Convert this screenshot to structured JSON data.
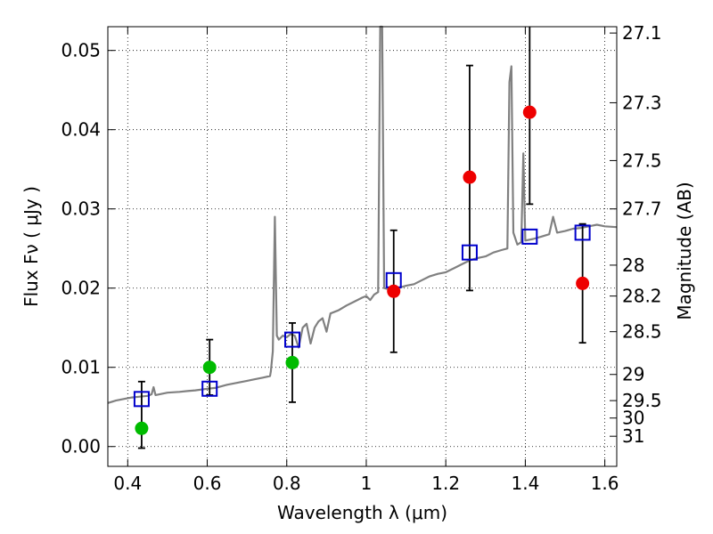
{
  "chart_data": {
    "type": "scatter",
    "xlabel": "Wavelength  λ (μm)",
    "ylabel": "Flux  Fν  ( μJy )",
    "ylabel_right": "Magnitude (AB)",
    "xlim": [
      0.35,
      1.63
    ],
    "ylim": [
      -0.0025,
      0.053
    ],
    "grid": true,
    "colors": {
      "spectrum": "#808080",
      "model_photometry": "#0000cc",
      "detections": "#00bb00",
      "upper_points": "#ee0000",
      "errorbar": "#000000"
    },
    "x_ticks": [
      {
        "value": 0.4,
        "label": "0.4"
      },
      {
        "value": 0.6,
        "label": "0.6"
      },
      {
        "value": 0.8,
        "label": "0.8"
      },
      {
        "value": 1.0,
        "label": "1"
      },
      {
        "value": 1.2,
        "label": "1.2"
      },
      {
        "value": 1.4,
        "label": "1.4"
      },
      {
        "value": 1.6,
        "label": "1.6"
      }
    ],
    "y_ticks": [
      {
        "value": 0.0,
        "label": "0.00"
      },
      {
        "value": 0.01,
        "label": "0.01"
      },
      {
        "value": 0.02,
        "label": "0.02"
      },
      {
        "value": 0.03,
        "label": "0.03"
      },
      {
        "value": 0.04,
        "label": "0.04"
      },
      {
        "value": 0.05,
        "label": "0.05"
      }
    ],
    "right_ticks": [
      {
        "flux": 0.0522,
        "label": "27.1"
      },
      {
        "flux": 0.0434,
        "label": "27.3"
      },
      {
        "flux": 0.0361,
        "label": "27.5"
      },
      {
        "flux": 0.03,
        "label": "27.7"
      },
      {
        "flux": 0.0229,
        "label": "28"
      },
      {
        "flux": 0.019,
        "label": "28.2"
      },
      {
        "flux": 0.0145,
        "label": "28.5"
      },
      {
        "flux": 0.0091,
        "label": "29"
      },
      {
        "flux": 0.0058,
        "label": "29.5"
      },
      {
        "flux": 0.0036,
        "label": "30"
      },
      {
        "flux": 0.0013,
        "label": "31"
      }
    ],
    "spectrum": [
      [
        0.35,
        0.0055
      ],
      [
        0.37,
        0.0058
      ],
      [
        0.39,
        0.006
      ],
      [
        0.41,
        0.0062
      ],
      [
        0.43,
        0.0063
      ],
      [
        0.45,
        0.0064
      ],
      [
        0.46,
        0.0066
      ],
      [
        0.465,
        0.0075
      ],
      [
        0.47,
        0.0065
      ],
      [
        0.5,
        0.0068
      ],
      [
        0.53,
        0.0069
      ],
      [
        0.55,
        0.007
      ],
      [
        0.57,
        0.0071
      ],
      [
        0.6,
        0.0073
      ],
      [
        0.62,
        0.0074
      ],
      [
        0.65,
        0.0078
      ],
      [
        0.68,
        0.0081
      ],
      [
        0.7,
        0.0083
      ],
      [
        0.72,
        0.0085
      ],
      [
        0.74,
        0.0087
      ],
      [
        0.758,
        0.0089
      ],
      [
        0.76,
        0.0095
      ],
      [
        0.765,
        0.012
      ],
      [
        0.77,
        0.029
      ],
      [
        0.775,
        0.014
      ],
      [
        0.78,
        0.0135
      ],
      [
        0.79,
        0.014
      ],
      [
        0.8,
        0.0138
      ],
      [
        0.81,
        0.0142
      ],
      [
        0.82,
        0.014
      ],
      [
        0.83,
        0.0125
      ],
      [
        0.84,
        0.015
      ],
      [
        0.85,
        0.0155
      ],
      [
        0.86,
        0.013
      ],
      [
        0.87,
        0.015
      ],
      [
        0.88,
        0.0158
      ],
      [
        0.89,
        0.0162
      ],
      [
        0.9,
        0.0145
      ],
      [
        0.91,
        0.0168
      ],
      [
        0.93,
        0.0172
      ],
      [
        0.95,
        0.0178
      ],
      [
        0.97,
        0.0183
      ],
      [
        0.99,
        0.0188
      ],
      [
        1.0,
        0.019
      ],
      [
        1.01,
        0.0185
      ],
      [
        1.02,
        0.0192
      ],
      [
        1.03,
        0.0195
      ],
      [
        1.035,
        0.053
      ],
      [
        1.04,
        0.053
      ],
      [
        1.045,
        0.02
      ],
      [
        1.06,
        0.0198
      ],
      [
        1.08,
        0.02
      ],
      [
        1.1,
        0.0203
      ],
      [
        1.12,
        0.0205
      ],
      [
        1.14,
        0.021
      ],
      [
        1.16,
        0.0215
      ],
      [
        1.18,
        0.0218
      ],
      [
        1.2,
        0.022
      ],
      [
        1.22,
        0.0225
      ],
      [
        1.24,
        0.023
      ],
      [
        1.26,
        0.0235
      ],
      [
        1.28,
        0.0238
      ],
      [
        1.3,
        0.024
      ],
      [
        1.32,
        0.0245
      ],
      [
        1.34,
        0.0248
      ],
      [
        1.355,
        0.025
      ],
      [
        1.36,
        0.046
      ],
      [
        1.365,
        0.048
      ],
      [
        1.37,
        0.027
      ],
      [
        1.38,
        0.0255
      ],
      [
        1.39,
        0.0258
      ],
      [
        1.395,
        0.037
      ],
      [
        1.4,
        0.026
      ],
      [
        1.42,
        0.0262
      ],
      [
        1.44,
        0.0265
      ],
      [
        1.46,
        0.0268
      ],
      [
        1.47,
        0.029
      ],
      [
        1.48,
        0.027
      ],
      [
        1.5,
        0.0272
      ],
      [
        1.52,
        0.0275
      ],
      [
        1.54,
        0.0276
      ],
      [
        1.56,
        0.0278
      ],
      [
        1.58,
        0.028
      ],
      [
        1.6,
        0.0278
      ],
      [
        1.63,
        0.0277
      ]
    ],
    "model_photometry": [
      {
        "x": 0.435,
        "y": 0.006
      },
      {
        "x": 0.606,
        "y": 0.0073
      },
      {
        "x": 0.814,
        "y": 0.0135
      },
      {
        "x": 1.069,
        "y": 0.021
      },
      {
        "x": 1.26,
        "y": 0.0245
      },
      {
        "x": 1.411,
        "y": 0.0265
      },
      {
        "x": 1.544,
        "y": 0.027
      }
    ],
    "detections": [
      {
        "x": 0.435,
        "y": 0.0023,
        "yerr_low": 0.0025,
        "yerr_high": 0.0059
      },
      {
        "x": 0.606,
        "y": 0.01,
        "yerr_low": 0.0035,
        "yerr_high": 0.0035
      },
      {
        "x": 0.814,
        "y": 0.0106,
        "yerr_low": 0.005,
        "yerr_high": 0.005
      }
    ],
    "upper_points": [
      {
        "x": 1.069,
        "y": 0.0196,
        "yerr_low": 0.0077,
        "yerr_high": 0.0077
      },
      {
        "x": 1.26,
        "y": 0.034,
        "yerr_low": 0.0143,
        "yerr_high": 0.0141
      },
      {
        "x": 1.411,
        "y": 0.0422,
        "yerr_low": 0.0116,
        "yerr_high": 0.0108
      },
      {
        "x": 1.544,
        "y": 0.0206,
        "yerr_low": 0.0075,
        "yerr_high": 0.0075
      }
    ]
  }
}
